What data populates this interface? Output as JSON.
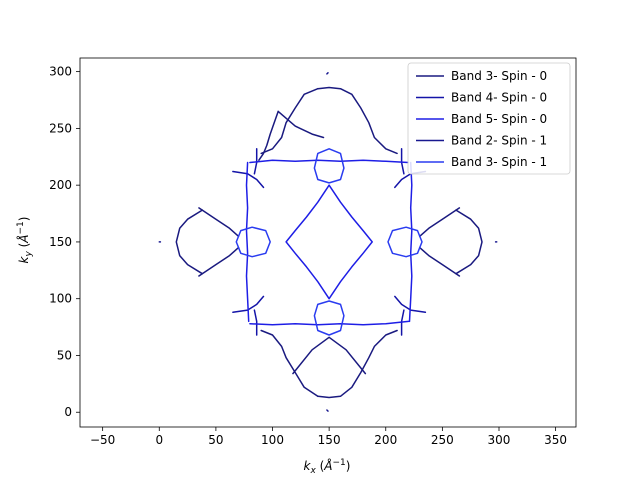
{
  "chart_data": {
    "type": "line",
    "title": "",
    "xlabel": "k_x (Å^-1)",
    "ylabel": "k_y (Å^-1)",
    "xlim": [
      -70,
      368
    ],
    "ylim": [
      -13,
      312
    ],
    "x_ticks": [
      -50,
      0,
      50,
      100,
      150,
      200,
      250,
      300,
      350
    ],
    "y_ticks": [
      0,
      50,
      100,
      150,
      200,
      250,
      300
    ],
    "grid": false,
    "legend_placement": "top-right",
    "colors": {
      "band3_spin0": "#1a1a80",
      "band4_spin0": "#1414a8",
      "band5_spin0": "#1e1ee6",
      "band2_spin1": "#18188f",
      "band3_spin1": "#2a3cf0"
    },
    "series": [
      {
        "name": "Band 3- Spin - 0",
        "color": "#1a1a80",
        "description_curves": "outer diamond lobes",
        "curves": [
          [
            [
              105,
              265
            ],
            [
              120,
              252
            ],
            [
              135,
              245
            ],
            [
              145,
              242
            ]
          ],
          [
            [
              105,
              265
            ],
            [
              98,
              245
            ],
            [
              95,
              235
            ],
            [
              92,
              228
            ],
            [
              88,
              222
            ]
          ],
          [
            [
              140,
              285
            ],
            [
              150,
              286
            ],
            [
              160,
              285
            ],
            [
              170,
              280
            ],
            [
              178,
              268
            ],
            [
              185,
              255
            ],
            [
              190,
              242
            ],
            [
              200,
              232
            ],
            [
              210,
              228
            ]
          ],
          [
            [
              140,
              285
            ],
            [
              128,
              280
            ],
            [
              120,
              268
            ],
            [
              112,
              255
            ],
            [
              108,
              242
            ],
            [
              100,
              232
            ],
            [
              90,
              228
            ]
          ],
          [
            [
              35,
              180
            ],
            [
              50,
              170
            ],
            [
              62,
              162
            ],
            [
              70,
              155
            ]
          ],
          [
            [
              35,
              120
            ],
            [
              50,
              130
            ],
            [
              62,
              138
            ],
            [
              70,
              145
            ]
          ],
          [
            [
              38,
              178
            ],
            [
              25,
              170
            ],
            [
              18,
              162
            ],
            [
              15,
              150
            ],
            [
              18,
              138
            ],
            [
              25,
              130
            ],
            [
              38,
              122
            ]
          ],
          [
            [
              265,
              180
            ],
            [
              250,
              170
            ],
            [
              238,
              162
            ],
            [
              230,
              155
            ]
          ],
          [
            [
              265,
              120
            ],
            [
              250,
              130
            ],
            [
              238,
              138
            ],
            [
              230,
              145
            ]
          ],
          [
            [
              262,
              178
            ],
            [
              275,
              170
            ],
            [
              282,
              162
            ],
            [
              285,
              150
            ],
            [
              282,
              138
            ],
            [
              275,
              130
            ],
            [
              262,
              122
            ]
          ],
          [
            [
              140,
              14
            ],
            [
              150,
              13
            ],
            [
              160,
              14
            ],
            [
              170,
              22
            ],
            [
              178,
              35
            ],
            [
              185,
              48
            ],
            [
              190,
              58
            ],
            [
              200,
              68
            ],
            [
              210,
              72
            ]
          ],
          [
            [
              140,
              14
            ],
            [
              128,
              22
            ],
            [
              120,
              35
            ],
            [
              112,
              48
            ],
            [
              108,
              58
            ],
            [
              100,
              68
            ],
            [
              90,
              72
            ]
          ],
          [
            [
              118,
              34
            ],
            [
              135,
              55
            ],
            [
              150,
              66
            ],
            [
              165,
              55
            ],
            [
              182,
              34
            ]
          ]
        ]
      },
      {
        "name": "Band 4- Spin - 0",
        "color": "#1414a8",
        "curves": [
          [
            [
              65,
              212
            ],
            [
              78,
              210
            ],
            [
              86,
              205
            ],
            [
              92,
              198
            ]
          ],
          [
            [
              86,
              232
            ],
            [
              86,
              220
            ],
            [
              84,
              210
            ]
          ],
          [
            [
              65,
              88
            ],
            [
              78,
              90
            ],
            [
              86,
              95
            ],
            [
              92,
              102
            ]
          ],
          [
            [
              86,
              68
            ],
            [
              86,
              80
            ],
            [
              84,
              90
            ]
          ],
          [
            [
              235,
              212
            ],
            [
              222,
              210
            ],
            [
              214,
              205
            ],
            [
              208,
              198
            ]
          ],
          [
            [
              214,
              232
            ],
            [
              214,
              220
            ],
            [
              216,
              210
            ]
          ],
          [
            [
              235,
              88
            ],
            [
              222,
              90
            ],
            [
              214,
              95
            ],
            [
              208,
              102
            ]
          ],
          [
            [
              214,
              68
            ],
            [
              214,
              80
            ],
            [
              216,
              90
            ]
          ]
        ]
      },
      {
        "name": "Band 5- Spin - 0",
        "color": "#1e1ee6",
        "curves": [
          [
            [
              80,
              220
            ],
            [
              100,
              222
            ],
            [
              120,
              221
            ],
            [
              140,
              222
            ],
            [
              160,
              221
            ],
            [
              180,
              222
            ],
            [
              200,
              221
            ],
            [
              220,
              220
            ]
          ],
          [
            [
              80,
              78
            ],
            [
              100,
              77
            ],
            [
              120,
              78
            ],
            [
              140,
              77
            ],
            [
              160,
              78
            ],
            [
              180,
              77
            ],
            [
              200,
              78
            ],
            [
              220,
              80
            ]
          ],
          [
            [
              78,
              220
            ],
            [
              77,
              200
            ],
            [
              78,
              180
            ],
            [
              77,
              160
            ],
            [
              78,
              140
            ],
            [
              77,
              120
            ],
            [
              78,
              100
            ],
            [
              79,
              80
            ]
          ],
          [
            [
              222,
              220
            ],
            [
              223,
              200
            ],
            [
              222,
              180
            ],
            [
              223,
              160
            ],
            [
              222,
              140
            ],
            [
              223,
              120
            ],
            [
              222,
              100
            ],
            [
              221,
              80
            ]
          ],
          [
            [
              150,
              200
            ],
            [
              140,
              185
            ],
            [
              130,
              172
            ],
            [
              120,
              160
            ],
            [
              112,
              150
            ],
            [
              120,
              140
            ],
            [
              130,
              128
            ],
            [
              140,
              115
            ],
            [
              150,
              100
            ],
            [
              160,
              115
            ],
            [
              170,
              128
            ],
            [
              180,
              140
            ],
            [
              188,
              150
            ],
            [
              180,
              160
            ],
            [
              170,
              172
            ],
            [
              160,
              185
            ],
            [
              150,
              200
            ]
          ]
        ]
      },
      {
        "name": "Band 2- Spin - 1",
        "color": "#18188f",
        "curves": [
          [
            [
              148,
              298
            ],
            [
              149,
              299
            ]
          ],
          [
            [
              148,
              2
            ],
            [
              149,
              1
            ]
          ],
          [
            [
              0,
              150
            ],
            [
              1,
              150
            ]
          ],
          [
            [
              297,
              150
            ],
            [
              298,
              150
            ]
          ]
        ]
      },
      {
        "name": "Band 3- Spin - 1",
        "color": "#2a3cf0",
        "curves": [
          [
            [
              150,
              202
            ],
            [
              140,
              205
            ],
            [
              137,
              215
            ],
            [
              140,
              228
            ],
            [
              150,
              232
            ],
            [
              160,
              228
            ],
            [
              163,
              215
            ],
            [
              160,
              205
            ],
            [
              150,
              202
            ]
          ],
          [
            [
              150,
              98
            ],
            [
              140,
              95
            ],
            [
              137,
              85
            ],
            [
              140,
              72
            ],
            [
              150,
              68
            ],
            [
              160,
              72
            ],
            [
              163,
              85
            ],
            [
              160,
              95
            ],
            [
              150,
              98
            ]
          ],
          [
            [
              68,
              150
            ],
            [
              72,
              140
            ],
            [
              82,
              137
            ],
            [
              94,
              140
            ],
            [
              98,
              150
            ],
            [
              94,
              160
            ],
            [
              82,
              163
            ],
            [
              72,
              160
            ],
            [
              68,
              150
            ]
          ],
          [
            [
              232,
              150
            ],
            [
              228,
              140
            ],
            [
              218,
              137
            ],
            [
              206,
              140
            ],
            [
              202,
              150
            ],
            [
              206,
              160
            ],
            [
              218,
              163
            ],
            [
              228,
              160
            ],
            [
              232,
              150
            ]
          ]
        ]
      }
    ]
  }
}
